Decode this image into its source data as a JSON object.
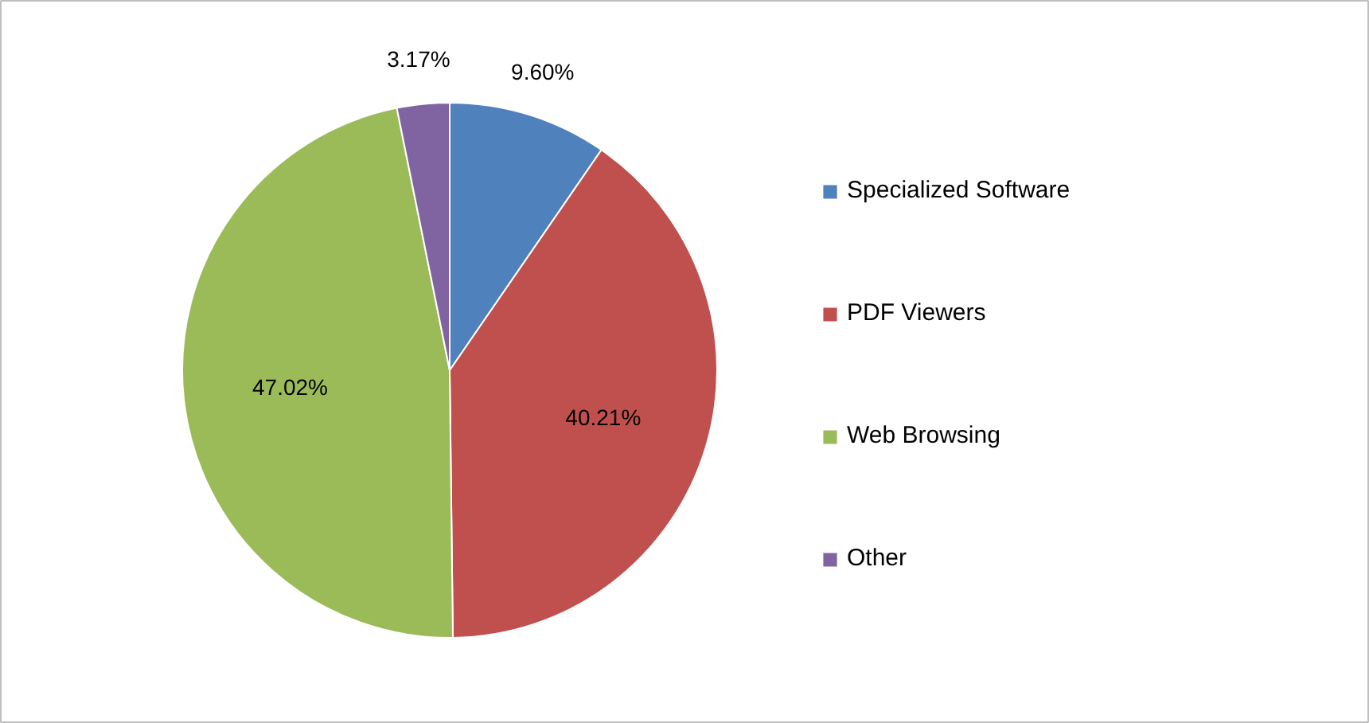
{
  "chart_data": {
    "type": "pie",
    "categories": [
      "Specialized Software",
      "PDF Viewers",
      "Web Browsing",
      "Other"
    ],
    "values": [
      9.6,
      40.21,
      47.02,
      3.17
    ],
    "colors": [
      "#4f81bd",
      "#c0504d",
      "#9bbb59",
      "#8064a2"
    ],
    "value_labels": [
      "9.60%",
      "40.21%",
      "47.02%",
      "3.17%"
    ],
    "legend": "right"
  }
}
